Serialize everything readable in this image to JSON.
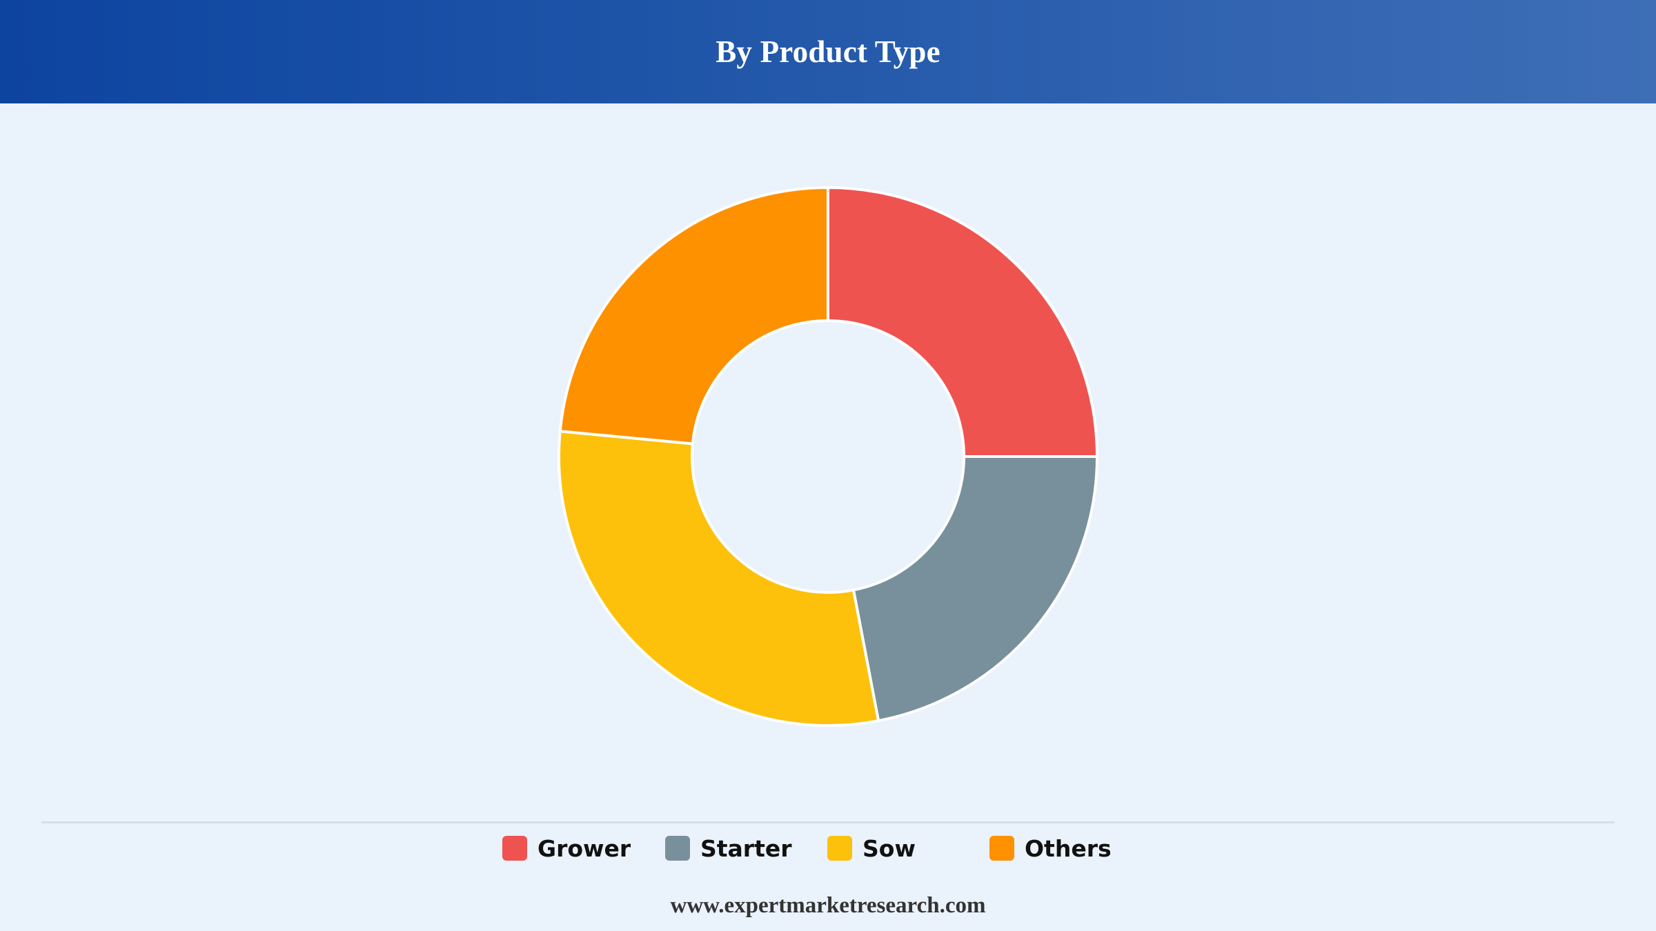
{
  "header": {
    "title": "By Product Type"
  },
  "chart_data": {
    "type": "pie",
    "variant": "donut",
    "title": "By Product Type",
    "categories": [
      "Grower",
      "Starter",
      "Sow",
      "Others"
    ],
    "values": [
      25.0,
      22.0,
      29.5,
      23.5
    ],
    "unit": "%",
    "colors": [
      "#ef5350",
      "#78909c",
      "#fdc10b",
      "#fe9100"
    ],
    "start_angle_deg": 0,
    "direction": "clockwise",
    "legend_position": "bottom"
  },
  "legend": {
    "items": [
      {
        "label": "Grower",
        "color": "#ef5350"
      },
      {
        "label": "Starter",
        "color": "#78909c"
      },
      {
        "label": "Sow",
        "color": "#fdc10b"
      },
      {
        "label": "Others",
        "color": "#fe9100"
      }
    ]
  },
  "footer": {
    "source": "www.expertmarketresearch.com"
  }
}
